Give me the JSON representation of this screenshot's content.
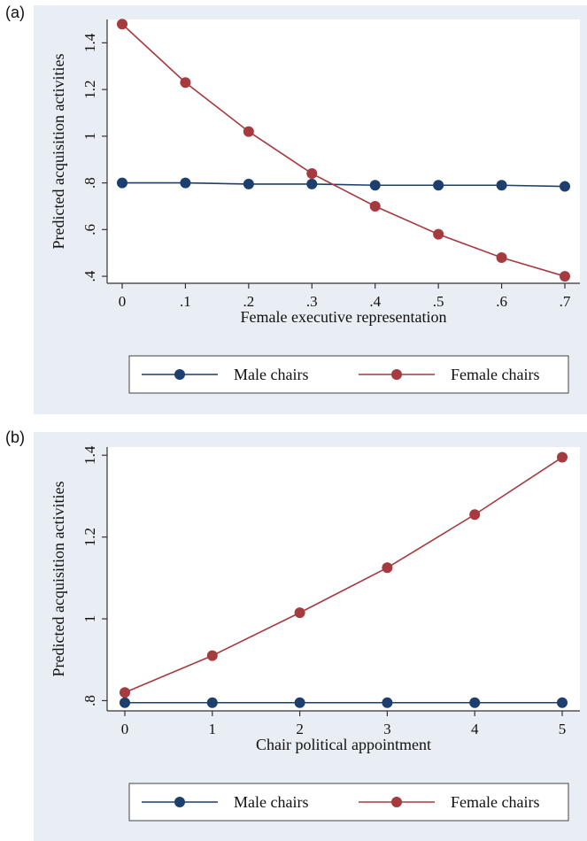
{
  "chart_data": [
    {
      "type": "line",
      "panel_label": "(a)",
      "xlabel": "Female executive representation",
      "ylabel": "Predicted acquisition activities",
      "x": [
        0,
        0.1,
        0.2,
        0.3,
        0.4,
        0.5,
        0.6,
        0.7
      ],
      "x_tick_labels": [
        "0",
        ".1",
        ".2",
        ".3",
        ".4",
        ".5",
        ".6",
        ".7"
      ],
      "y_ticks": [
        0.4,
        0.6,
        0.8,
        1.0,
        1.2,
        1.4
      ],
      "y_tick_labels": [
        ".4",
        ".6",
        ".8",
        "1",
        "1.2",
        "1.4"
      ],
      "xlim": [
        0,
        0.7
      ],
      "ylim": [
        0.37,
        1.5
      ],
      "grid": false,
      "legend_position": "bottom",
      "series": [
        {
          "name": "Male chairs",
          "color": "#1c3f6e",
          "values": [
            0.8,
            0.8,
            0.795,
            0.795,
            0.79,
            0.79,
            0.79,
            0.785
          ]
        },
        {
          "name": "Female chairs",
          "color": "#a53a3f",
          "values": [
            1.48,
            1.23,
            1.02,
            0.84,
            0.7,
            0.58,
            0.48,
            0.4
          ]
        }
      ]
    },
    {
      "type": "line",
      "panel_label": "(b)",
      "xlabel": "Chair political appointment",
      "ylabel": "Predicted acquisition activities",
      "x": [
        0,
        1,
        2,
        3,
        4,
        5
      ],
      "x_tick_labels": [
        "0",
        "1",
        "2",
        "3",
        "4",
        "5"
      ],
      "y_ticks": [
        0.8,
        1.0,
        1.2,
        1.4
      ],
      "y_tick_labels": [
        ".8",
        "1",
        "1.2",
        "1.4"
      ],
      "xlim": [
        0,
        5
      ],
      "ylim": [
        0.775,
        1.42
      ],
      "grid": false,
      "legend_position": "bottom",
      "series": [
        {
          "name": "Male chairs",
          "color": "#1c3f6e",
          "values": [
            0.795,
            0.795,
            0.795,
            0.795,
            0.795,
            0.795
          ]
        },
        {
          "name": "Female chairs",
          "color": "#a53a3f",
          "values": [
            0.82,
            0.91,
            1.015,
            1.125,
            1.255,
            1.395
          ]
        }
      ]
    }
  ]
}
